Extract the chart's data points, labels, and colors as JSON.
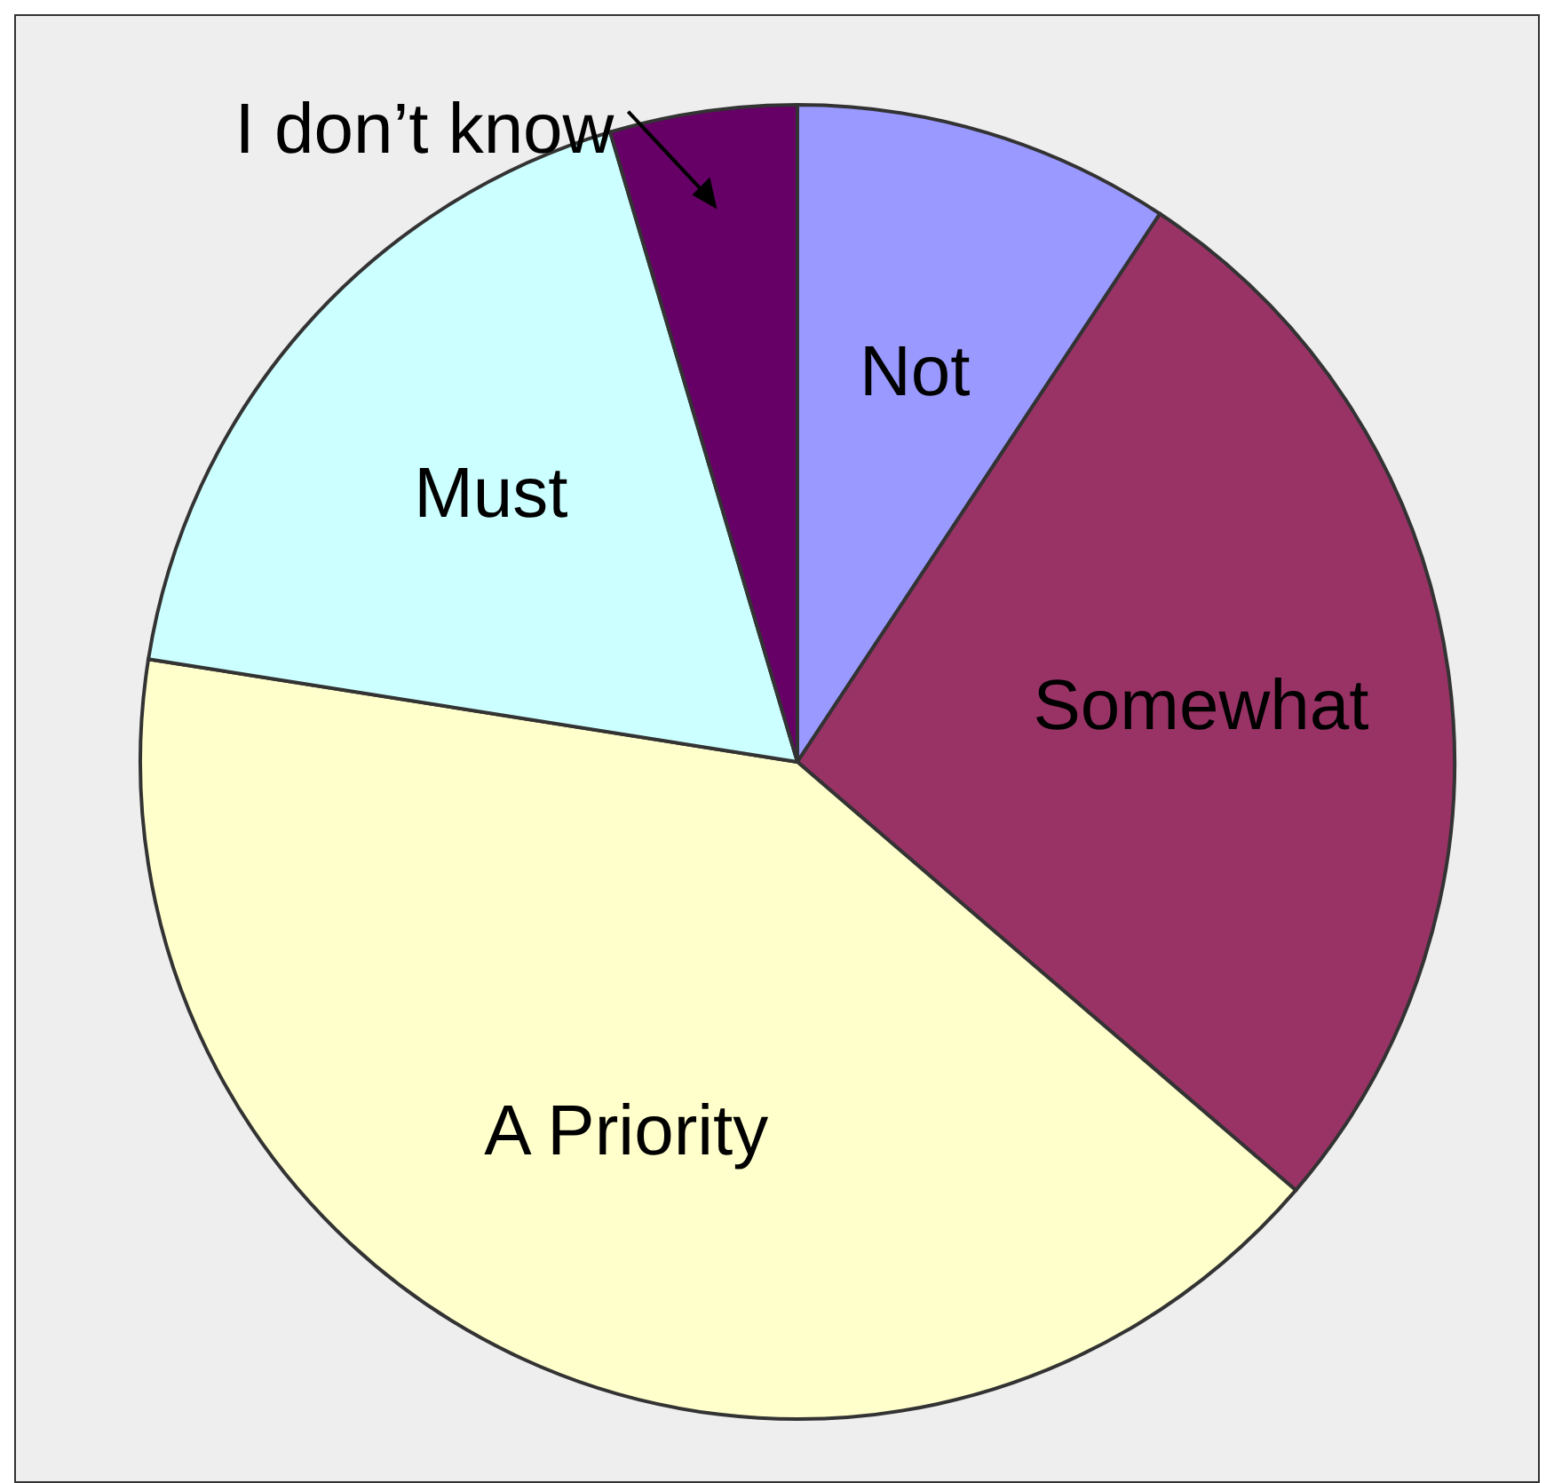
{
  "chart_data": {
    "type": "pie",
    "categories": [
      "Not",
      "Somewhat",
      "A Priority",
      "Must",
      "I don’t know"
    ],
    "values": [
      9.3,
      27,
      41.2,
      17.9,
      4.6
    ],
    "colors": [
      "#9999ff",
      "#993366",
      "#ffffcc",
      "#ccffff",
      "#660066"
    ]
  }
}
